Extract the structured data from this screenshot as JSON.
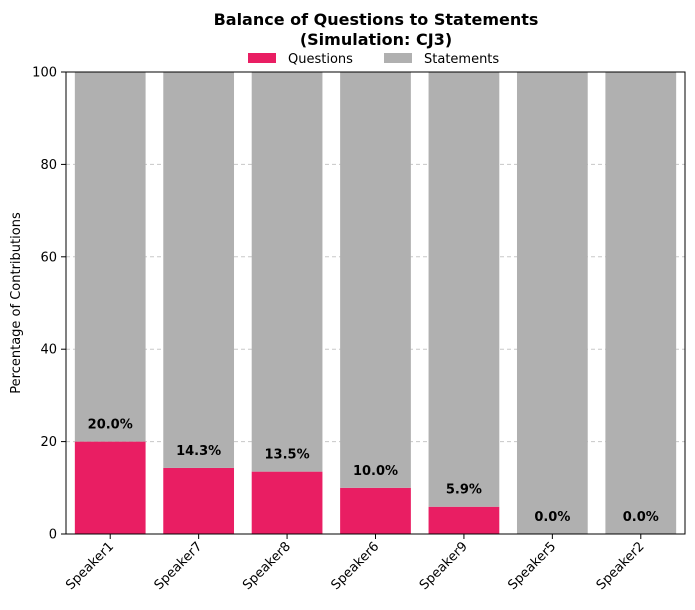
{
  "chart_data": {
    "type": "bar",
    "stacked": true,
    "title_line1": "Balance of Questions to Statements",
    "title_line2": "(Simulation: CJ3)",
    "ylabel": "Percentage of Contributions",
    "xlabel": "",
    "ylim": [
      0,
      100
    ],
    "yticks": [
      0,
      20,
      40,
      60,
      80,
      100
    ],
    "grid": "y-dashed",
    "legend_position": "top-center",
    "categories": [
      "Speaker1",
      "Speaker7",
      "Speaker8",
      "Speaker6",
      "Speaker9",
      "Speaker5",
      "Speaker2"
    ],
    "series": [
      {
        "name": "Questions",
        "color": "#e91e63",
        "values": [
          20.0,
          14.3,
          13.5,
          10.0,
          5.9,
          0.0,
          0.0
        ]
      },
      {
        "name": "Statements",
        "color": "#b0b0b0",
        "values": [
          80.0,
          85.7,
          86.5,
          90.0,
          94.1,
          100.0,
          100.0
        ]
      }
    ],
    "data_labels": [
      "20.0%",
      "14.3%",
      "13.5%",
      "10.0%",
      "5.9%",
      "0.0%",
      "0.0%"
    ]
  }
}
